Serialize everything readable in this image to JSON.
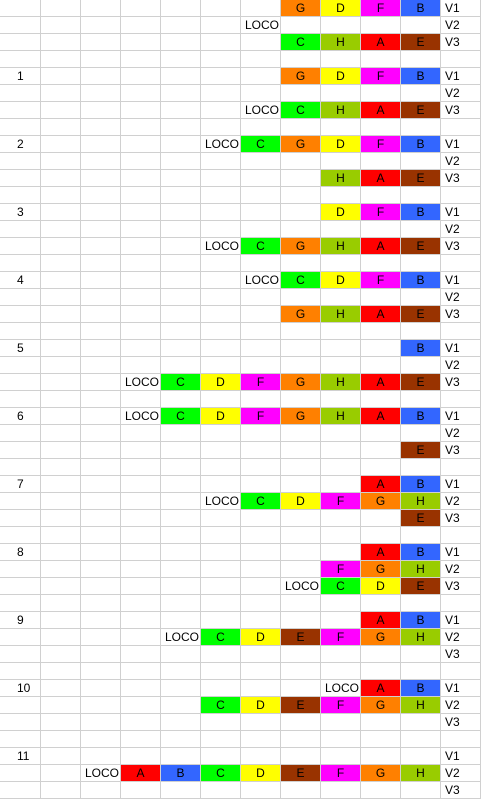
{
  "colors": {
    "A": "#ff0000",
    "B": "#3366ff",
    "C": "#00ff00",
    "D": "#ffff00",
    "E": "#993300",
    "F": "#ff00ff",
    "G": "#ff8000",
    "H": "#99cc00",
    "gridline": "#d0d0d0"
  },
  "loco_label": "LOCO",
  "rows": [
    {
      "step": "",
      "track": "V1",
      "cells": [
        "",
        "",
        "",
        "",
        "",
        "",
        "",
        "G",
        "D",
        "F",
        "B"
      ]
    },
    {
      "step": "",
      "track": "V2",
      "cells": [
        "",
        "",
        "",
        "",
        "",
        "",
        "LOCO",
        "",
        "",
        "",
        ""
      ]
    },
    {
      "step": "",
      "track": "V3",
      "cells": [
        "",
        "",
        "",
        "",
        "",
        "",
        "",
        "C",
        "H",
        "A",
        "E"
      ]
    },
    {
      "step": "",
      "track": "",
      "cells": [
        "",
        "",
        "",
        "",
        "",
        "",
        "",
        "",
        "",
        "",
        ""
      ]
    },
    {
      "step": "1",
      "track": "V1",
      "cells": [
        "",
        "",
        "",
        "",
        "",
        "",
        "",
        "G",
        "D",
        "F",
        "B"
      ]
    },
    {
      "step": "",
      "track": "V2",
      "cells": [
        "",
        "",
        "",
        "",
        "",
        "",
        "",
        "",
        "",
        "",
        ""
      ]
    },
    {
      "step": "",
      "track": "V3",
      "cells": [
        "",
        "",
        "",
        "",
        "",
        "",
        "LOCO",
        "C",
        "H",
        "A",
        "E"
      ]
    },
    {
      "step": "",
      "track": "",
      "cells": [
        "",
        "",
        "",
        "",
        "",
        "",
        "",
        "",
        "",
        "",
        ""
      ]
    },
    {
      "step": "2",
      "track": "V1",
      "cells": [
        "",
        "",
        "",
        "",
        "",
        "LOCO",
        "C",
        "G",
        "D",
        "F",
        "B"
      ]
    },
    {
      "step": "",
      "track": "V2",
      "cells": [
        "",
        "",
        "",
        "",
        "",
        "",
        "",
        "",
        "",
        "",
        ""
      ]
    },
    {
      "step": "",
      "track": "V3",
      "cells": [
        "",
        "",
        "",
        "",
        "",
        "",
        "",
        "",
        "H",
        "A",
        "E"
      ]
    },
    {
      "step": "",
      "track": "",
      "cells": [
        "",
        "",
        "",
        "",
        "",
        "",
        "",
        "",
        "",
        "",
        ""
      ]
    },
    {
      "step": "3",
      "track": "V1",
      "cells": [
        "",
        "",
        "",
        "",
        "",
        "",
        "",
        "",
        "D",
        "F",
        "B"
      ]
    },
    {
      "step": "",
      "track": "V2",
      "cells": [
        "",
        "",
        "",
        "",
        "",
        "",
        "",
        "",
        "",
        "",
        ""
      ]
    },
    {
      "step": "",
      "track": "V3",
      "cells": [
        "",
        "",
        "",
        "",
        "",
        "LOCO",
        "C",
        "G",
        "H",
        "A",
        "E"
      ]
    },
    {
      "step": "",
      "track": "",
      "cells": [
        "",
        "",
        "",
        "",
        "",
        "",
        "",
        "",
        "",
        "",
        ""
      ]
    },
    {
      "step": "4",
      "track": "V1",
      "cells": [
        "",
        "",
        "",
        "",
        "",
        "",
        "LOCO",
        "C",
        "D",
        "F",
        "B"
      ]
    },
    {
      "step": "",
      "track": "V2",
      "cells": [
        "",
        "",
        "",
        "",
        "",
        "",
        "",
        "",
        "",
        "",
        ""
      ]
    },
    {
      "step": "",
      "track": "V3",
      "cells": [
        "",
        "",
        "",
        "",
        "",
        "",
        "",
        "G",
        "H",
        "A",
        "E"
      ]
    },
    {
      "step": "",
      "track": "",
      "cells": [
        "",
        "",
        "",
        "",
        "",
        "",
        "",
        "",
        "",
        "",
        ""
      ]
    },
    {
      "step": "5",
      "track": "V1",
      "cells": [
        "",
        "",
        "",
        "",
        "",
        "",
        "",
        "",
        "",
        "",
        "B"
      ]
    },
    {
      "step": "",
      "track": "V2",
      "cells": [
        "",
        "",
        "",
        "",
        "",
        "",
        "",
        "",
        "",
        "",
        ""
      ]
    },
    {
      "step": "",
      "track": "V3",
      "cells": [
        "",
        "",
        "",
        "LOCO",
        "C",
        "D",
        "F",
        "G",
        "H",
        "A",
        "E"
      ]
    },
    {
      "step": "",
      "track": "",
      "cells": [
        "",
        "",
        "",
        "",
        "",
        "",
        "",
        "",
        "",
        "",
        ""
      ]
    },
    {
      "step": "6",
      "track": "V1",
      "cells": [
        "",
        "",
        "",
        "LOCO",
        "C",
        "D",
        "F",
        "G",
        "H",
        "A",
        "B"
      ]
    },
    {
      "step": "",
      "track": "V2",
      "cells": [
        "",
        "",
        "",
        "",
        "",
        "",
        "",
        "",
        "",
        "",
        ""
      ]
    },
    {
      "step": "",
      "track": "V3",
      "cells": [
        "",
        "",
        "",
        "",
        "",
        "",
        "",
        "",
        "",
        "",
        "E"
      ]
    },
    {
      "step": "",
      "track": "",
      "cells": [
        "",
        "",
        "",
        "",
        "",
        "",
        "",
        "",
        "",
        "",
        ""
      ]
    },
    {
      "step": "7",
      "track": "V1",
      "cells": [
        "",
        "",
        "",
        "",
        "",
        "",
        "",
        "",
        "",
        "A",
        "B"
      ]
    },
    {
      "step": "",
      "track": "V2",
      "cells": [
        "",
        "",
        "",
        "",
        "",
        "LOCO",
        "C",
        "D",
        "F",
        "G",
        "H"
      ]
    },
    {
      "step": "",
      "track": "V3",
      "cells": [
        "",
        "",
        "",
        "",
        "",
        "",
        "",
        "",
        "",
        "",
        "E"
      ]
    },
    {
      "step": "",
      "track": "",
      "cells": [
        "",
        "",
        "",
        "",
        "",
        "",
        "",
        "",
        "",
        "",
        ""
      ]
    },
    {
      "step": "8",
      "track": "V1",
      "cells": [
        "",
        "",
        "",
        "",
        "",
        "",
        "",
        "",
        "",
        "A",
        "B"
      ]
    },
    {
      "step": "",
      "track": "V2",
      "cells": [
        "",
        "",
        "",
        "",
        "",
        "",
        "",
        "",
        "F",
        "G",
        "H"
      ]
    },
    {
      "step": "",
      "track": "V3",
      "cells": [
        "",
        "",
        "",
        "",
        "",
        "",
        "",
        "LOCO",
        "C",
        "D",
        "E"
      ]
    },
    {
      "step": "",
      "track": "",
      "cells": [
        "",
        "",
        "",
        "",
        "",
        "",
        "",
        "",
        "",
        "",
        ""
      ]
    },
    {
      "step": "9",
      "track": "V1",
      "cells": [
        "",
        "",
        "",
        "",
        "",
        "",
        "",
        "",
        "",
        "A",
        "B"
      ]
    },
    {
      "step": "",
      "track": "V2",
      "cells": [
        "",
        "",
        "",
        "",
        "LOCO",
        "C",
        "D",
        "E",
        "F",
        "G",
        "H"
      ]
    },
    {
      "step": "",
      "track": "V3",
      "cells": [
        "",
        "",
        "",
        "",
        "",
        "",
        "",
        "",
        "",
        "",
        ""
      ]
    },
    {
      "step": "",
      "track": "",
      "cells": [
        "",
        "",
        "",
        "",
        "",
        "",
        "",
        "",
        "",
        "",
        ""
      ]
    },
    {
      "step": "10",
      "track": "V1",
      "cells": [
        "",
        "",
        "",
        "",
        "",
        "",
        "",
        "",
        "LOCO",
        "A",
        "B"
      ]
    },
    {
      "step": "",
      "track": "V2",
      "cells": [
        "",
        "",
        "",
        "",
        "",
        "C",
        "D",
        "E",
        "F",
        "G",
        "H"
      ]
    },
    {
      "step": "",
      "track": "V3",
      "cells": [
        "",
        "",
        "",
        "",
        "",
        "",
        "",
        "",
        "",
        "",
        ""
      ]
    },
    {
      "step": "",
      "track": "",
      "cells": [
        "",
        "",
        "",
        "",
        "",
        "",
        "",
        "",
        "",
        "",
        ""
      ]
    },
    {
      "step": "11",
      "track": "V1",
      "cells": [
        "",
        "",
        "",
        "",
        "",
        "",
        "",
        "",
        "",
        "",
        ""
      ]
    },
    {
      "step": "",
      "track": "V2",
      "cells": [
        "",
        "",
        "LOCO",
        "A",
        "B",
        "C",
        "D",
        "E",
        "F",
        "G",
        "H"
      ]
    },
    {
      "step": "",
      "track": "V3",
      "cells": [
        "",
        "",
        "",
        "",
        "",
        "",
        "",
        "",
        "",
        "",
        ""
      ]
    }
  ]
}
